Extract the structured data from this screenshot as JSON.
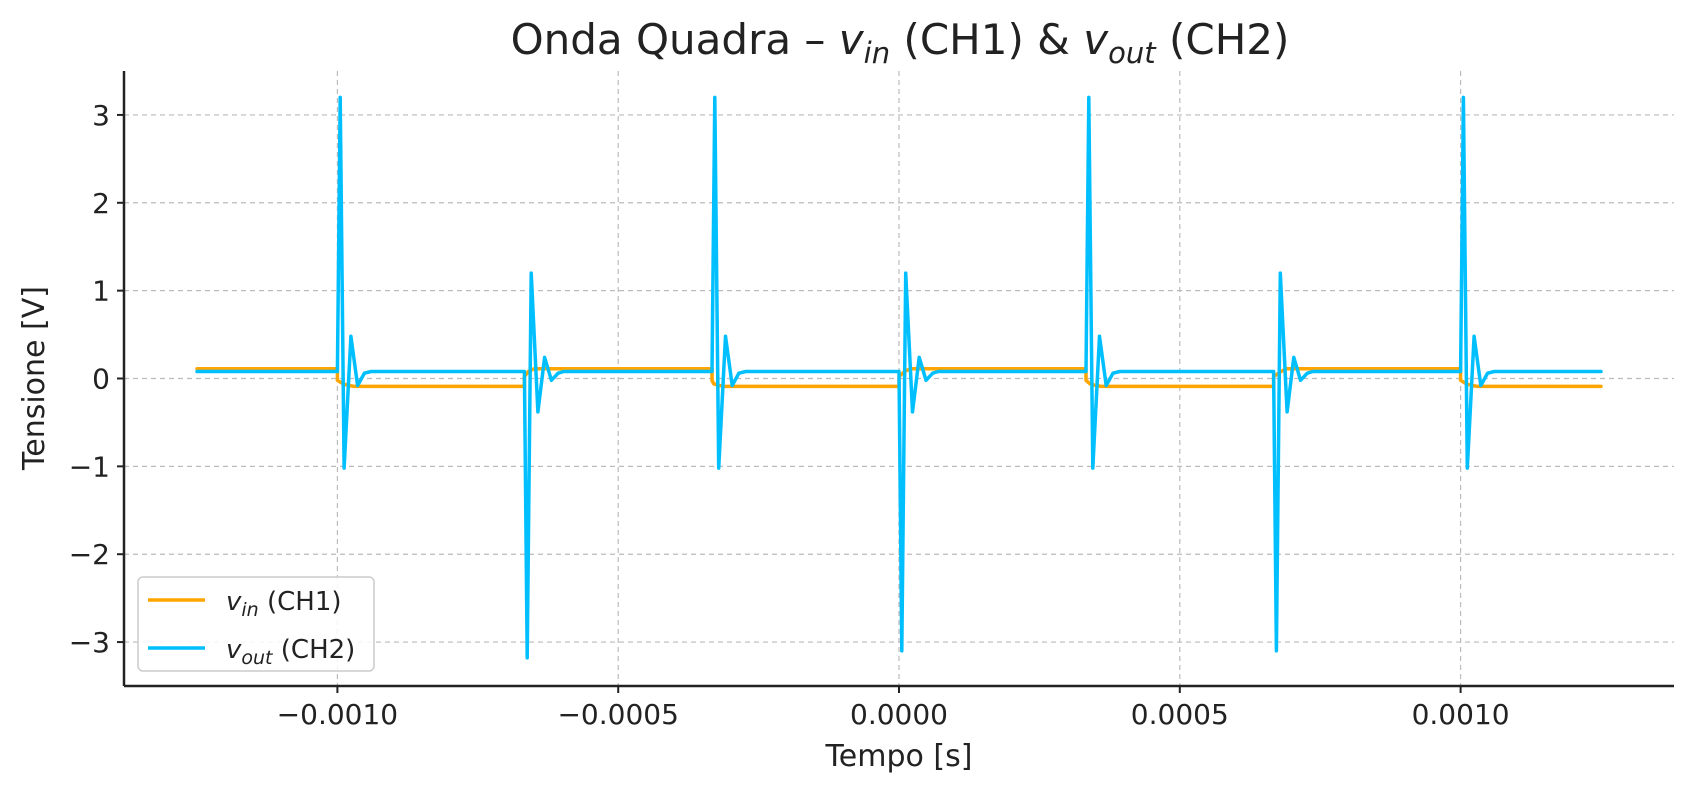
{
  "chart_data": {
    "type": "line",
    "title": {
      "prefix": "Onda Quadra – ",
      "v_in_base": "v",
      "v_in_sub": "in",
      "mid": " (CH1) & ",
      "v_out_base": "v",
      "v_out_sub": "out",
      "suffix": " (CH2)"
    },
    "xlabel": "Tempo [s]",
    "ylabel": "Tensione [V]",
    "xlim": [
      -0.00138,
      0.00138
    ],
    "ylim": [
      -3.5,
      3.5
    ],
    "xticks": [
      -0.001,
      -0.0005,
      0.0,
      0.0005,
      0.001
    ],
    "xtick_labels": [
      "−0.0010",
      "−0.0005",
      "0.0000",
      "0.0005",
      "0.0010"
    ],
    "yticks": [
      3,
      2,
      1,
      0,
      -1,
      -2,
      -3
    ],
    "ytick_labels": [
      "3",
      "2",
      "1",
      "0",
      "−1",
      "−2",
      "−3"
    ],
    "grid": true,
    "legend_position": "lower-left",
    "series": [
      {
        "name": "v_in (CH1)",
        "label_base": "v",
        "label_sub": "in",
        "label_rest": " (CH1)",
        "color": "#FFA500",
        "x": [
          -0.00125,
          -0.001,
          -0.001,
          -0.00099,
          -0.00098,
          -0.00097,
          -0.000667,
          -0.000667,
          -0.00066,
          -0.00065,
          -0.000333,
          -0.000333,
          -0.00033,
          -0.00032,
          -0.00031,
          0.0,
          0.0,
          1e-05,
          2e-05,
          0.000333,
          0.000333,
          0.00034,
          0.00035,
          0.00036,
          0.000667,
          0.000667,
          0.00068,
          0.00069,
          0.001,
          0.001,
          0.00101,
          0.00102,
          0.00103,
          0.00125
        ],
        "y": [
          0.11,
          0.11,
          -0.02,
          -0.06,
          -0.08,
          -0.09,
          -0.09,
          0.02,
          0.08,
          0.11,
          0.11,
          -0.02,
          -0.06,
          -0.08,
          -0.09,
          -0.09,
          0.02,
          0.08,
          0.11,
          0.11,
          -0.02,
          -0.06,
          -0.08,
          -0.09,
          -0.09,
          0.02,
          0.08,
          0.11,
          0.11,
          -0.02,
          -0.06,
          -0.08,
          -0.09,
          -0.09
        ]
      },
      {
        "name": "v_out (CH2)",
        "label_base": "v",
        "label_sub": "out",
        "label_rest": " (CH2)",
        "color": "#00BFFF",
        "x": [
          -0.00125,
          -0.001,
          -0.000995,
          -0.000988,
          -0.000976,
          -0.000964,
          -0.000952,
          -0.00094,
          -0.00093,
          -0.000667,
          -0.000662,
          -0.000655,
          -0.000643,
          -0.000631,
          -0.000619,
          -0.000607,
          -0.000597,
          -0.000333,
          -0.000328,
          -0.000321,
          -0.000309,
          -0.000297,
          -0.000285,
          -0.000273,
          -0.000263,
          0.0,
          5e-06,
          1.2e-05,
          2.4e-05,
          3.6e-05,
          4.8e-05,
          6e-05,
          7e-05,
          0.000333,
          0.000338,
          0.000345,
          0.000357,
          0.000369,
          0.000381,
          0.000393,
          0.000403,
          0.000667,
          0.000672,
          0.000679,
          0.000691,
          0.000703,
          0.000715,
          0.000727,
          0.000737,
          0.001,
          0.001005,
          0.001012,
          0.001024,
          0.001036,
          0.001048,
          0.00106,
          0.00107,
          0.00125
        ],
        "y": [
          0.08,
          0.08,
          3.2,
          -1.02,
          0.48,
          -0.08,
          0.06,
          0.08,
          0.08,
          0.08,
          -3.18,
          1.2,
          -0.38,
          0.24,
          -0.02,
          0.06,
          0.08,
          0.08,
          3.2,
          -1.02,
          0.48,
          -0.08,
          0.06,
          0.08,
          0.08,
          0.08,
          -3.1,
          1.2,
          -0.38,
          0.24,
          -0.02,
          0.06,
          0.08,
          0.08,
          3.2,
          -1.02,
          0.48,
          -0.08,
          0.06,
          0.08,
          0.08,
          0.08,
          -3.1,
          1.2,
          -0.38,
          0.24,
          -0.02,
          0.06,
          0.08,
          0.08,
          3.2,
          -1.02,
          0.48,
          -0.08,
          0.06,
          0.08,
          0.08,
          0.08
        ]
      }
    ]
  }
}
